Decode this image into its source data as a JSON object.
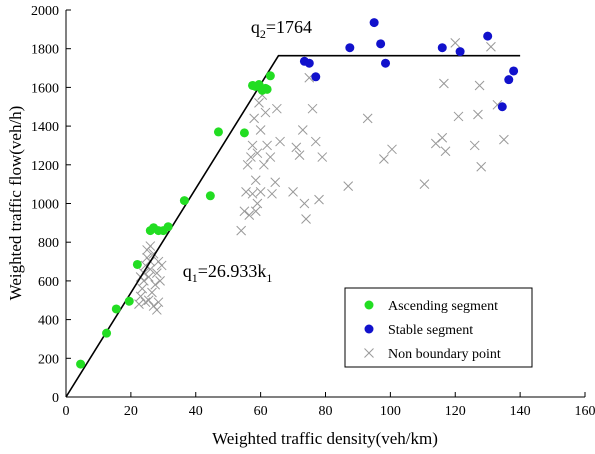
{
  "chart_data": {
    "type": "scatter",
    "title": "",
    "xlabel": "Weighted traffic density(veh/km)",
    "ylabel": "Weighted traffic flow(veh/h)",
    "xlim": [
      0,
      160
    ],
    "ylim": [
      0,
      2000
    ],
    "x_ticks": [
      "0",
      "20",
      "40",
      "60",
      "80",
      "100",
      "120",
      "140",
      "160"
    ],
    "y_ticks": [
      "0",
      "200",
      "400",
      "600",
      "800",
      "1000",
      "1200",
      "1400",
      "1600",
      "1800",
      "2000"
    ],
    "x_tick_values": [
      0,
      20,
      40,
      60,
      80,
      100,
      120,
      140,
      160
    ],
    "y_tick_values": [
      0,
      200,
      400,
      600,
      800,
      1000,
      1200,
      1400,
      1600,
      1800,
      2000
    ],
    "grid": false,
    "legend_position": "bottom-right",
    "colors": {
      "ascending": "#22dd22",
      "stable": "#1111cc",
      "non_boundary": "#999999",
      "model_line": "#000000"
    },
    "annotations": [
      {
        "base": "q",
        "sub": "1",
        "text": "=26.933k",
        "sub2": "1",
        "x": 36,
        "y": 620
      },
      {
        "base": "q",
        "sub": "2",
        "text": "=1764",
        "sub2": "",
        "x": 57,
        "y": 1880
      }
    ],
    "model_line": {
      "name": "Model",
      "points": [
        [
          0,
          0
        ],
        [
          65.5,
          1764
        ],
        [
          140,
          1764
        ]
      ]
    },
    "series": [
      {
        "name": "Ascending segment",
        "marker": "circle",
        "points": [
          [
            4.5,
            170
          ],
          [
            12.5,
            330
          ],
          [
            15.5,
            455
          ],
          [
            19.5,
            495
          ],
          [
            22,
            685
          ],
          [
            26,
            860
          ],
          [
            27,
            875
          ],
          [
            28.5,
            860
          ],
          [
            30,
            860
          ],
          [
            31.5,
            880
          ],
          [
            36.5,
            1015
          ],
          [
            44.5,
            1040
          ],
          [
            47,
            1370
          ],
          [
            55,
            1365
          ],
          [
            57.5,
            1610
          ],
          [
            58.5,
            1605
          ],
          [
            59.5,
            1615
          ],
          [
            60.5,
            1585
          ],
          [
            61.5,
            1595
          ],
          [
            62,
            1590
          ],
          [
            63,
            1660
          ]
        ]
      },
      {
        "name": "Stable segment",
        "marker": "circle",
        "points": [
          [
            73.5,
            1735
          ],
          [
            75,
            1725
          ],
          [
            77,
            1655
          ],
          [
            87.5,
            1805
          ],
          [
            95,
            1935
          ],
          [
            97,
            1825
          ],
          [
            98.5,
            1725
          ],
          [
            116,
            1805
          ],
          [
            121.5,
            1785
          ],
          [
            130,
            1865
          ],
          [
            134.5,
            1500
          ],
          [
            136.5,
            1640
          ],
          [
            138,
            1685
          ]
        ]
      },
      {
        "name": "Non boundary point",
        "marker": "cross",
        "points": [
          [
            22.5,
            480
          ],
          [
            23,
            520
          ],
          [
            23.5,
            560
          ],
          [
            24,
            600
          ],
          [
            24,
            640
          ],
          [
            24.5,
            680
          ],
          [
            24.5,
            490
          ],
          [
            25,
            720
          ],
          [
            25,
            760
          ],
          [
            25.5,
            500
          ],
          [
            25.5,
            620
          ],
          [
            26,
            660
          ],
          [
            26,
            700
          ],
          [
            26.5,
            540
          ],
          [
            27,
            470
          ],
          [
            27,
            740
          ],
          [
            27.5,
            580
          ],
          [
            28,
            450
          ],
          [
            28,
            640
          ],
          [
            28.5,
            490
          ],
          [
            28.5,
            700
          ],
          [
            29,
            600
          ],
          [
            26,
            780
          ],
          [
            23,
            620
          ],
          [
            29.5,
            680
          ],
          [
            54,
            860
          ],
          [
            55,
            960
          ],
          [
            55.5,
            1060
          ],
          [
            56,
            1200
          ],
          [
            56.5,
            940
          ],
          [
            57,
            1240
          ],
          [
            57.5,
            1300
          ],
          [
            57.5,
            1050
          ],
          [
            58,
            1440
          ],
          [
            58.5,
            1120
          ],
          [
            58.5,
            960
          ],
          [
            59,
            1260
          ],
          [
            59,
            1000
          ],
          [
            59.5,
            1520
          ],
          [
            60,
            1380
          ],
          [
            60,
            1060
          ],
          [
            60.5,
            1560
          ],
          [
            61,
            1200
          ],
          [
            61.5,
            1470
          ],
          [
            62,
            1300
          ],
          [
            63,
            1240
          ],
          [
            63.5,
            1050
          ],
          [
            64.5,
            1110
          ],
          [
            65,
            1490
          ],
          [
            66,
            1320
          ],
          [
            70,
            1060
          ],
          [
            71,
            1290
          ],
          [
            72,
            1250
          ],
          [
            73,
            1380
          ],
          [
            73.5,
            1000
          ],
          [
            74,
            920
          ],
          [
            75,
            1650
          ],
          [
            76,
            1490
          ],
          [
            77,
            1320
          ],
          [
            78,
            1020
          ],
          [
            79,
            1240
          ],
          [
            87,
            1090
          ],
          [
            93,
            1440
          ],
          [
            98,
            1230
          ],
          [
            100.5,
            1280
          ],
          [
            110.5,
            1100
          ],
          [
            114,
            1310
          ],
          [
            116,
            1340
          ],
          [
            116.5,
            1620
          ],
          [
            117,
            1270
          ],
          [
            120,
            1830
          ],
          [
            121,
            1450
          ],
          [
            126,
            1300
          ],
          [
            127,
            1460
          ],
          [
            127.5,
            1610
          ],
          [
            128,
            1190
          ],
          [
            131,
            1810
          ],
          [
            133,
            1510
          ],
          [
            135,
            1330
          ]
        ]
      }
    ]
  }
}
